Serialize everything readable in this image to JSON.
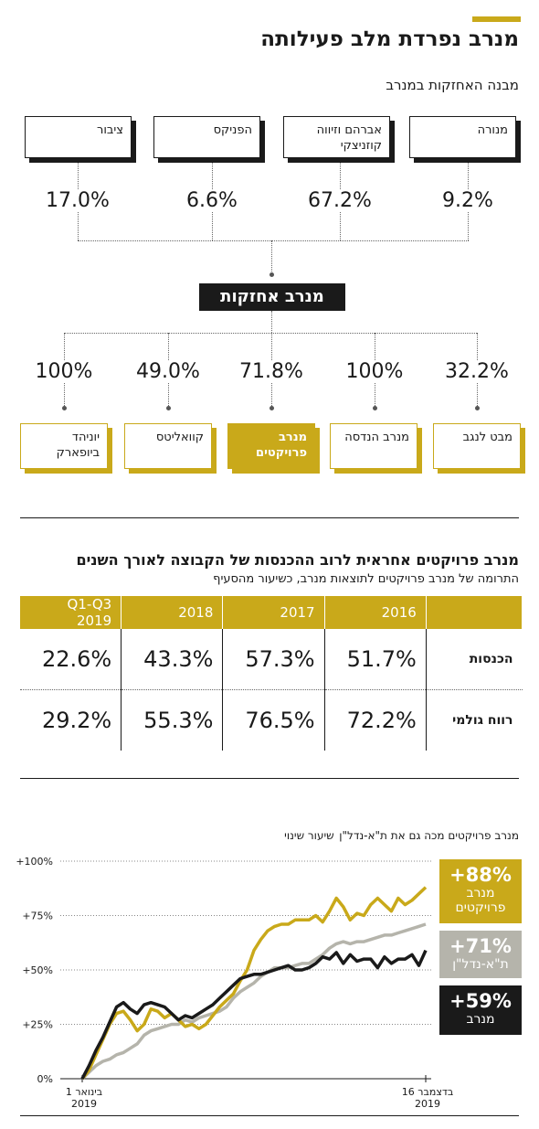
{
  "title": "מנרב נפרדת מלב פעילותה",
  "holdings": {
    "title": "מבנה האחזקות במנרב",
    "owners": [
      {
        "name": "מנורה",
        "pct": "9.2%"
      },
      {
        "name": "אברהם וזיווה קוזניצקי",
        "pct": "67.2%"
      },
      {
        "name": "הפניקס",
        "pct": "6.6%"
      },
      {
        "name": "ציבור",
        "pct": "17.0%"
      }
    ],
    "company": "מנרב אחזקות",
    "subsidiaries": [
      {
        "name": "מבט לנגב",
        "pct": "32.2%",
        "highlight": false
      },
      {
        "name": "מנרב הנדסה",
        "pct": "100%",
        "highlight": false
      },
      {
        "name": "מנרב פרויקטים",
        "pct": "71.8%",
        "highlight": true
      },
      {
        "name": "קוואליטס",
        "pct": "49.0%",
        "highlight": false
      },
      {
        "name": "יוניהד ביופארק",
        "pct": "100%",
        "highlight": false
      }
    ]
  },
  "table": {
    "title": "מנרב פרויקטים אחראית לרוב ההכנסות של הקבוצה לאורך השנים",
    "subtitle": "התרומה של מנרב פרויקטים לתוצאות מנרב, כשיעור מהסעיף",
    "columns": [
      "Q1-Q3 2019",
      "2018",
      "2017",
      "2016"
    ],
    "rows": [
      {
        "label": "הכנסות",
        "values": [
          "22.6%",
          "43.3%",
          "57.3%",
          "51.7%"
        ]
      },
      {
        "label": "רווח גולמי",
        "values": [
          "29.2%",
          "55.3%",
          "76.5%",
          "72.2%"
        ]
      }
    ]
  },
  "chart_title": "מנרב פרויקטים מכה גם את ת\"א-נדל\"ן",
  "chart_title_note": "שיעור שינוי",
  "colors": {
    "gold": "#c9a91a",
    "gray": "#b5b4ab",
    "black": "#1a1a1a"
  },
  "chart_data": {
    "type": "line",
    "ylabel": "שיעור שינוי",
    "yticks": [
      "0%",
      "+25%",
      "+50%",
      "+75%",
      "+100%"
    ],
    "ylim": [
      0,
      100
    ],
    "x_start_label": "1 בינואר",
    "x_start_year": "2019",
    "x_end_label": "16 בדצמבר",
    "x_end_year": "2019",
    "x_index_range": [
      0,
      50
    ],
    "series": [
      {
        "name": "מנרב פרויקטים",
        "final": "+88%",
        "color": "#c9a91a",
        "values": [
          0,
          4,
          11,
          18,
          25,
          30,
          31,
          27,
          22,
          25,
          32,
          31,
          28,
          30,
          27,
          24,
          25,
          23,
          25,
          29,
          33,
          36,
          39,
          45,
          50,
          59,
          64,
          68,
          70,
          71,
          71,
          73,
          73,
          73,
          75,
          72,
          77,
          83,
          79,
          73,
          76,
          75,
          80,
          83,
          80,
          77,
          83,
          80,
          82,
          85,
          88
        ]
      },
      {
        "name": "ת\"א-נדל\"ן",
        "final": "+71%",
        "color": "#b5b4ab",
        "values": [
          0,
          3,
          6,
          8,
          9,
          11,
          12,
          14,
          16,
          20,
          22,
          23,
          24,
          25,
          25,
          27,
          26,
          28,
          29,
          30,
          31,
          33,
          37,
          40,
          42,
          44,
          47,
          49,
          51,
          51,
          51,
          52,
          53,
          53,
          55,
          57,
          60,
          62,
          63,
          62,
          63,
          63,
          64,
          65,
          66,
          66,
          67,
          68,
          69,
          70,
          71
        ]
      },
      {
        "name": "מנרב",
        "final": "+59%",
        "color": "#1a1a1a",
        "values": [
          0,
          6,
          13,
          19,
          26,
          33,
          35,
          32,
          30,
          34,
          35,
          34,
          33,
          30,
          27,
          29,
          28,
          30,
          32,
          34,
          37,
          40,
          43,
          46,
          47,
          48,
          48,
          49,
          50,
          51,
          52,
          50,
          50,
          51,
          53,
          56,
          55,
          58,
          53,
          57,
          54,
          55,
          55,
          51,
          56,
          53,
          55,
          55,
          57,
          52,
          59
        ]
      }
    ]
  }
}
